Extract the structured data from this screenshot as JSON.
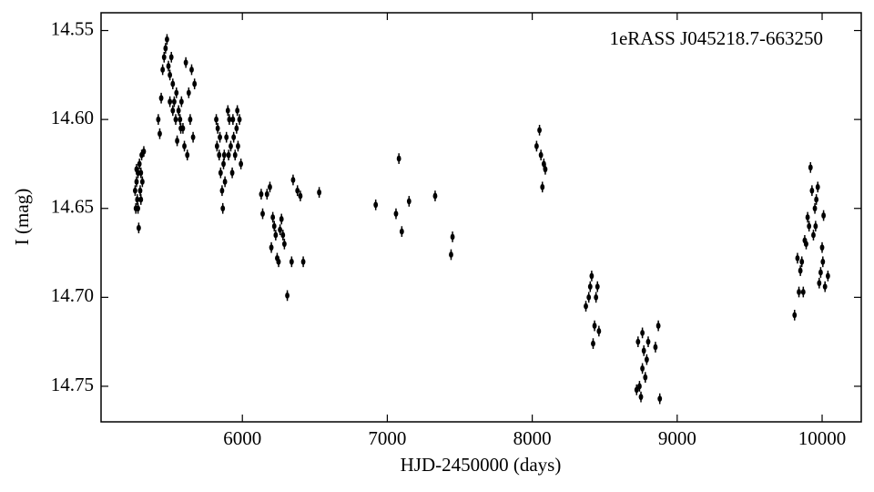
{
  "chart_data": {
    "type": "scatter",
    "annotation": "1eRASS J045218.7-663250",
    "xlabel": "HJD-2450000 (days)",
    "ylabel": "I (mag)",
    "xlim": [
      5025,
      10270
    ],
    "ylim": [
      14.54,
      14.77
    ],
    "invert_y": true,
    "xticks": [
      6000,
      7000,
      8000,
      9000,
      10000
    ],
    "yticks": [
      14.55,
      {
        "value": 14.6,
        "label": "14.60"
      },
      14.65,
      {
        "value": 14.7,
        "label": "14.70"
      },
      14.75
    ],
    "color": "#000000",
    "yerr": 0.003,
    "x": [
      5260,
      5265,
      5270,
      5275,
      5280,
      5285,
      5290,
      5295,
      5300,
      5305,
      5310,
      5320,
      5270,
      5280,
      5300,
      5420,
      5430,
      5440,
      5450,
      5460,
      5470,
      5480,
      5490,
      5500,
      5510,
      5520,
      5530,
      5540,
      5550,
      5560,
      5570,
      5580,
      5590,
      5600,
      5610,
      5620,
      5630,
      5640,
      5650,
      5660,
      5670,
      5500,
      5520,
      5545,
      5575,
      5820,
      5825,
      5830,
      5840,
      5850,
      5860,
      5865,
      5870,
      5880,
      5890,
      5900,
      5905,
      5910,
      5920,
      5930,
      5940,
      5950,
      5960,
      5970,
      5980,
      5990,
      5845,
      5875,
      5935,
      5965,
      6130,
      6140,
      6170,
      6190,
      6200,
      6210,
      6220,
      6230,
      6240,
      6250,
      6260,
      6270,
      6280,
      6290,
      6310,
      6340,
      6350,
      6380,
      6400,
      6420,
      6530,
      6920,
      7060,
      7080,
      7100,
      7150,
      7330,
      7440,
      7450,
      8030,
      8050,
      8060,
      8070,
      8080,
      8090,
      8370,
      8390,
      8400,
      8410,
      8420,
      8430,
      8440,
      8450,
      8460,
      8720,
      8730,
      8740,
      8750,
      8760,
      8770,
      8780,
      8790,
      8800,
      8850,
      8870,
      8880,
      8760,
      9810,
      9830,
      9840,
      9850,
      9860,
      9870,
      9880,
      9890,
      9900,
      9910,
      9920,
      9930,
      9940,
      9950,
      9960,
      9970,
      9980,
      9990,
      10000,
      10010,
      10020,
      10040,
      9955,
      10005
    ],
    "values": [
      14.64,
      14.65,
      14.635,
      14.645,
      14.63,
      14.661,
      14.625,
      14.64,
      14.63,
      14.62,
      14.635,
      14.618,
      14.628,
      14.65,
      14.645,
      14.6,
      14.608,
      14.588,
      14.572,
      14.565,
      14.56,
      14.555,
      14.57,
      14.575,
      14.565,
      14.58,
      14.59,
      14.6,
      14.612,
      14.595,
      14.6,
      14.59,
      14.605,
      14.615,
      14.568,
      14.62,
      14.585,
      14.6,
      14.572,
      14.61,
      14.58,
      14.59,
      14.595,
      14.585,
      14.605,
      14.6,
      14.615,
      14.605,
      14.62,
      14.63,
      14.64,
      14.65,
      14.625,
      14.635,
      14.61,
      14.595,
      14.62,
      14.6,
      14.615,
      14.63,
      14.61,
      14.62,
      14.605,
      14.615,
      14.6,
      14.625,
      14.61,
      14.62,
      14.6,
      14.595,
      14.642,
      14.653,
      14.642,
      14.638,
      14.672,
      14.655,
      14.66,
      14.665,
      14.678,
      14.68,
      14.662,
      14.656,
      14.665,
      14.67,
      14.699,
      14.68,
      14.634,
      14.64,
      14.643,
      14.68,
      14.641,
      14.648,
      14.653,
      14.622,
      14.663,
      14.646,
      14.643,
      14.676,
      14.666,
      14.615,
      14.606,
      14.62,
      14.638,
      14.625,
      14.628,
      14.705,
      14.7,
      14.694,
      14.688,
      14.726,
      14.716,
      14.7,
      14.694,
      14.719,
      14.752,
      14.725,
      14.75,
      14.756,
      14.72,
      14.73,
      14.745,
      14.735,
      14.725,
      14.728,
      14.716,
      14.757,
      14.74,
      14.71,
      14.678,
      14.697,
      14.685,
      14.68,
      14.697,
      14.668,
      14.67,
      14.655,
      14.66,
      14.627,
      14.64,
      14.665,
      14.65,
      14.645,
      14.638,
      14.692,
      14.686,
      14.672,
      14.654,
      14.694,
      14.688,
      14.66,
      14.68
    ]
  }
}
